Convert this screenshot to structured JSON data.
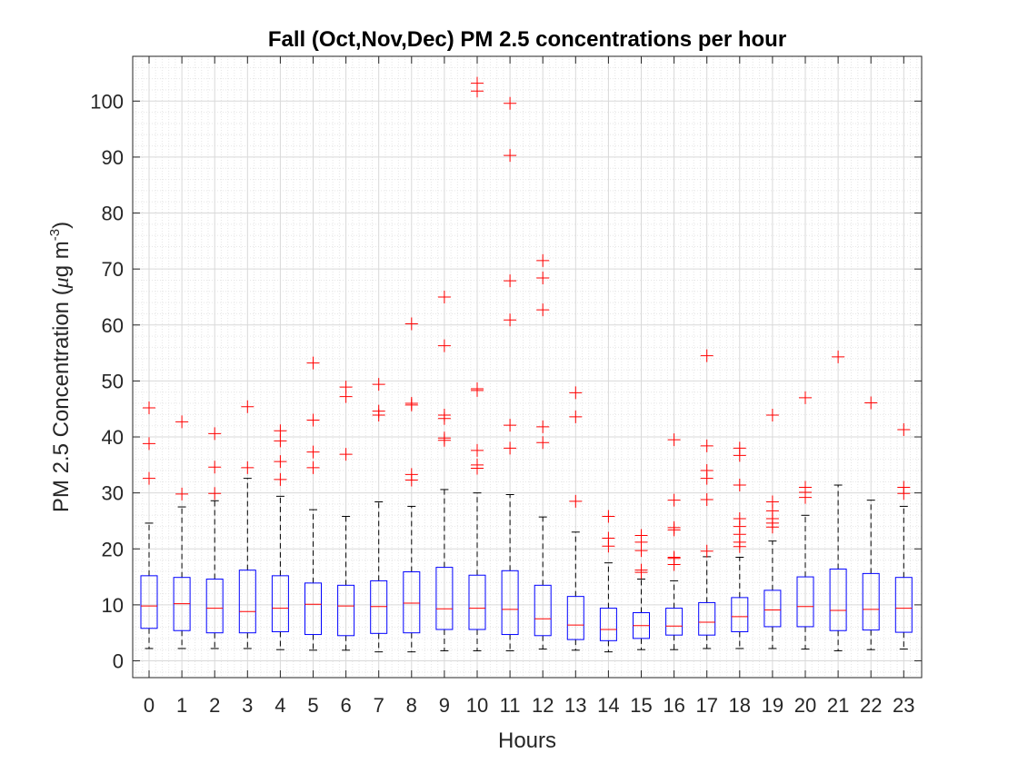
{
  "chart_data": {
    "type": "boxplot",
    "title": "Fall (Oct,Nov,Dec) PM 2.5 concentrations per hour",
    "xlabel": "Hours",
    "ylabel_main": "PM 2.5 Concentration (",
    "ylabel_mu": "μ",
    "ylabel_unit": "g m",
    "ylabel_exp": "-3",
    "ylabel_close": ")",
    "ylim": [
      -3,
      108
    ],
    "yticks": [
      0,
      10,
      20,
      30,
      40,
      50,
      60,
      70,
      80,
      90,
      100
    ],
    "grid": "major and minor",
    "colors": {
      "box": "#0000ff",
      "median": "#ff0000",
      "whisker": "#000000",
      "outlier": "#ff0000",
      "grid_major": "#d9d9d9",
      "grid_minor": "#e6e6e6"
    },
    "boxes": [
      {
        "x": "0",
        "lower_whisker": 2.2,
        "q1": 5.8,
        "median": 9.8,
        "q3": 15.2,
        "upper_whisker": 24.6,
        "outliers": [
          32.6,
          38.8,
          45.2
        ]
      },
      {
        "x": "1",
        "lower_whisker": 2.2,
        "q1": 5.4,
        "median": 10.2,
        "q3": 14.9,
        "upper_whisker": 27.5,
        "outliers": [
          29.8,
          42.7
        ]
      },
      {
        "x": "2",
        "lower_whisker": 2.2,
        "q1": 5.0,
        "median": 9.4,
        "q3": 14.6,
        "upper_whisker": 28.6,
        "outliers": [
          29.9,
          34.6,
          40.6
        ]
      },
      {
        "x": "3",
        "lower_whisker": 2.2,
        "q1": 5.0,
        "median": 8.8,
        "q3": 16.2,
        "upper_whisker": 32.6,
        "outliers": [
          34.5,
          45.4
        ]
      },
      {
        "x": "4",
        "lower_whisker": 2.0,
        "q1": 5.2,
        "median": 9.4,
        "q3": 15.2,
        "upper_whisker": 29.4,
        "outliers": [
          32.4,
          35.6,
          39.3,
          41.1
        ]
      },
      {
        "x": "5",
        "lower_whisker": 1.9,
        "q1": 4.7,
        "median": 10.1,
        "q3": 13.9,
        "upper_whisker": 27.0,
        "outliers": [
          34.5,
          37.3,
          43.0,
          53.2
        ]
      },
      {
        "x": "6",
        "lower_whisker": 1.9,
        "q1": 4.5,
        "median": 9.8,
        "q3": 13.5,
        "upper_whisker": 25.8,
        "outliers": [
          36.9,
          47.2,
          48.9
        ]
      },
      {
        "x": "7",
        "lower_whisker": 1.6,
        "q1": 4.9,
        "median": 9.7,
        "q3": 14.3,
        "upper_whisker": 28.4,
        "outliers": [
          43.9,
          44.6,
          49.4
        ]
      },
      {
        "x": "8",
        "lower_whisker": 1.6,
        "q1": 5.0,
        "median": 10.3,
        "q3": 15.9,
        "upper_whisker": 27.6,
        "outliers": [
          32.3,
          33.3,
          45.7,
          46.0,
          60.2
        ]
      },
      {
        "x": "9",
        "lower_whisker": 1.8,
        "q1": 5.6,
        "median": 9.3,
        "q3": 16.7,
        "upper_whisker": 30.6,
        "outliers": [
          39.4,
          39.8,
          43.3,
          43.9,
          56.3,
          65.0
        ]
      },
      {
        "x": "10",
        "lower_whisker": 1.8,
        "q1": 5.6,
        "median": 9.4,
        "q3": 15.3,
        "upper_whisker": 30.0,
        "outliers": [
          34.4,
          35.0,
          37.6,
          48.3,
          48.6,
          101.8,
          103.2
        ]
      },
      {
        "x": "11",
        "lower_whisker": 1.8,
        "q1": 4.7,
        "median": 9.2,
        "q3": 16.1,
        "upper_whisker": 29.7,
        "outliers": [
          38.0,
          42.1,
          60.9,
          67.9,
          90.3,
          99.6
        ]
      },
      {
        "x": "12",
        "lower_whisker": 2.1,
        "q1": 4.5,
        "median": 7.5,
        "q3": 13.5,
        "upper_whisker": 25.7,
        "outliers": [
          39.0,
          41.8,
          62.7,
          68.4,
          71.5
        ]
      },
      {
        "x": "13",
        "lower_whisker": 1.9,
        "q1": 3.8,
        "median": 6.4,
        "q3": 11.5,
        "upper_whisker": 23.0,
        "outliers": [
          28.5,
          43.6,
          47.9
        ]
      },
      {
        "x": "14",
        "lower_whisker": 1.6,
        "q1": 3.6,
        "median": 5.6,
        "q3": 9.4,
        "upper_whisker": 17.5,
        "outliers": [
          20.5,
          21.9,
          25.8
        ]
      },
      {
        "x": "15",
        "lower_whisker": 2.0,
        "q1": 4.0,
        "median": 6.3,
        "q3": 8.6,
        "upper_whisker": 14.6,
        "outliers": [
          15.8,
          16.2,
          19.7,
          21.2,
          22.4
        ]
      },
      {
        "x": "16",
        "lower_whisker": 2.0,
        "q1": 4.6,
        "median": 6.2,
        "q3": 9.4,
        "upper_whisker": 14.3,
        "outliers": [
          17.2,
          18.3,
          18.5,
          23.4,
          23.8,
          28.7,
          39.5
        ]
      },
      {
        "x": "17",
        "lower_whisker": 2.2,
        "q1": 4.6,
        "median": 6.9,
        "q3": 10.4,
        "upper_whisker": 18.6,
        "outliers": [
          19.6,
          28.8,
          32.6,
          34.0,
          38.4,
          54.5
        ]
      },
      {
        "x": "18",
        "lower_whisker": 2.2,
        "q1": 5.2,
        "median": 7.9,
        "q3": 11.3,
        "upper_whisker": 18.5,
        "outliers": [
          20.4,
          21.2,
          22.6,
          24.0,
          25.4,
          31.4,
          36.7,
          38.0
        ]
      },
      {
        "x": "19",
        "lower_whisker": 2.2,
        "q1": 6.1,
        "median": 9.1,
        "q3": 12.6,
        "upper_whisker": 21.4,
        "outliers": [
          23.9,
          24.6,
          25.4,
          26.8,
          28.4,
          43.9
        ]
      },
      {
        "x": "20",
        "lower_whisker": 2.1,
        "q1": 6.1,
        "median": 9.7,
        "q3": 15.0,
        "upper_whisker": 26.0,
        "outliers": [
          29.2,
          30.1,
          31.0,
          47.0
        ]
      },
      {
        "x": "21",
        "lower_whisker": 1.8,
        "q1": 5.4,
        "median": 9.0,
        "q3": 16.4,
        "upper_whisker": 31.4,
        "outliers": [
          54.3
        ]
      },
      {
        "x": "22",
        "lower_whisker": 2.0,
        "q1": 5.5,
        "median": 9.2,
        "q3": 15.6,
        "upper_whisker": 28.7,
        "outliers": [
          46.1
        ]
      },
      {
        "x": "23",
        "lower_whisker": 2.1,
        "q1": 5.1,
        "median": 9.4,
        "q3": 14.9,
        "upper_whisker": 27.6,
        "outliers": [
          29.9,
          31.0,
          41.3
        ]
      }
    ]
  }
}
